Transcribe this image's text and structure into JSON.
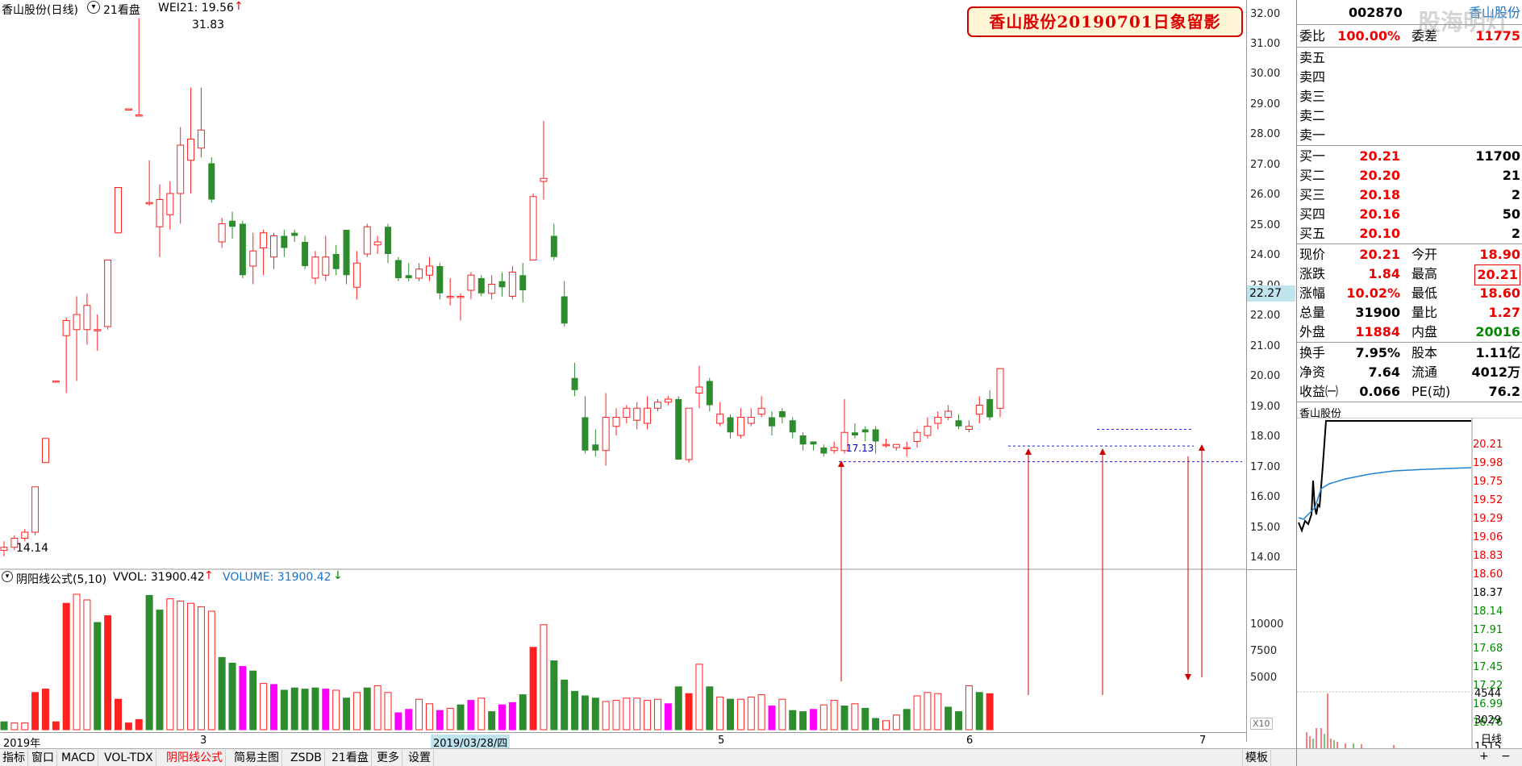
{
  "header": {
    "stock_title": "香山股份(日线)",
    "dropdown_icon": "chevron-down-icon",
    "tab21": "21看盘",
    "wei_label": "WEI21: 19.56",
    "wei_arrow": "↑"
  },
  "banner": {
    "text": "香山股份20190701日象留影"
  },
  "price_axis": {
    "ticks": [
      "32.00",
      "31.00",
      "30.00",
      "29.00",
      "28.00",
      "27.00",
      "26.00",
      "25.00",
      "24.00",
      "23.00",
      "22.00",
      "21.00",
      "20.00",
      "19.00",
      "18.00",
      "17.00",
      "16.00",
      "15.00",
      "14.00"
    ],
    "current": "22.27"
  },
  "chart_annotations": {
    "high": "31.83",
    "low": "14.14",
    "support": "17.13"
  },
  "volume_header": {
    "formula": "阴阳线公式(5,10)",
    "vvol": "VVOL: 31900.42",
    "vvol_arrow": "↑",
    "volume": "VOLUME: 31900.42",
    "volume_arrow": "↓"
  },
  "volume_axis": {
    "ticks": [
      "10000",
      "7500",
      "5000"
    ],
    "multiplier": "X10"
  },
  "date_axis": {
    "labels": [
      "2019年",
      "3",
      "2019/03/28/四",
      "5",
      "6",
      "7"
    ]
  },
  "toolbar": {
    "items": [
      "指标",
      "窗口",
      "MACD",
      "VOL-TDX",
      "阴阳线公式",
      "简易主图",
      "ZSDB",
      "21看盘",
      "更多",
      "设置"
    ],
    "right": "模板",
    "active_index": 4
  },
  "quote_panel": {
    "code": "002870",
    "name": "香山股份",
    "ratio_label": "委比",
    "ratio_value": "100.00%",
    "diff_label": "委差",
    "diff_value": "11775",
    "overlay_text": "股海明灯",
    "sells": [
      {
        "label": "卖五",
        "price": "",
        "vol": ""
      },
      {
        "label": "卖四",
        "price": "",
        "vol": ""
      },
      {
        "label": "卖三",
        "price": "",
        "vol": ""
      },
      {
        "label": "卖二",
        "price": "",
        "vol": ""
      },
      {
        "label": "卖一",
        "price": "",
        "vol": ""
      }
    ],
    "buys": [
      {
        "label": "买一",
        "price": "20.21",
        "vol": "11700"
      },
      {
        "label": "买二",
        "price": "20.20",
        "vol": "21"
      },
      {
        "label": "买三",
        "price": "20.18",
        "vol": "2"
      },
      {
        "label": "买四",
        "price": "20.16",
        "vol": "50"
      },
      {
        "label": "买五",
        "price": "20.10",
        "vol": "2"
      }
    ],
    "stats": [
      {
        "l1": "现价",
        "v1": "20.21",
        "c1": "red",
        "l2": "今开",
        "v2": "18.90",
        "c2": "red"
      },
      {
        "l1": "涨跌",
        "v1": "1.84",
        "c1": "red",
        "l2": "最高",
        "v2": "20.21",
        "c2": "red"
      },
      {
        "l1": "涨幅",
        "v1": "10.02%",
        "c1": "red",
        "l2": "最低",
        "v2": "18.60",
        "c2": "red"
      },
      {
        "l1": "总量",
        "v1": "31900",
        "c1": "blk",
        "l2": "量比",
        "v2": "1.27",
        "c2": "red"
      },
      {
        "l1": "外盘",
        "v1": "11884",
        "c1": "red",
        "l2": "内盘",
        "v2": "20016",
        "c2": "grn"
      }
    ],
    "stats2": [
      {
        "l1": "换手",
        "v1": "7.95%",
        "l2": "股本",
        "v2": "1.11亿"
      },
      {
        "l1": "净资",
        "v1": "7.64",
        "l2": "流通",
        "v2": "4012万"
      },
      {
        "l1": "收益㈠",
        "v1": "0.066",
        "l2": "PE(动)",
        "v2": "76.2"
      }
    ]
  },
  "mini_chart": {
    "title": "香山股份",
    "axis": [
      "20.21",
      "19.98",
      "19.75",
      "19.52",
      "19.29",
      "19.06",
      "18.83",
      "18.60",
      "18.37",
      "18.14",
      "17.91",
      "17.68",
      "17.45",
      "17.22",
      "16.99",
      "16.76"
    ],
    "vol_axis": [
      "4544",
      "3029",
      "1515"
    ],
    "bottom_label": "日线"
  },
  "colors": {
    "up": "#ff2020",
    "down": "#2e8b2e",
    "magenta": "#ff00ff",
    "banner_bg": "#fff6d8"
  },
  "chart_data": {
    "type": "candlestick",
    "candles": [
      {
        "o": 14.2,
        "c": 14.3,
        "h": 14.5,
        "l": 14.0
      },
      {
        "o": 14.3,
        "c": 14.6,
        "h": 14.7,
        "l": 14.2
      },
      {
        "o": 14.6,
        "c": 14.8,
        "h": 14.9,
        "l": 14.5
      },
      {
        "o": 14.8,
        "c": 16.3,
        "h": 16.3,
        "l": 14.7
      },
      {
        "o": 17.1,
        "c": 17.9,
        "h": 17.9,
        "l": 17.1
      },
      {
        "o": 19.8,
        "c": 19.8,
        "h": 19.8,
        "l": 19.8
      },
      {
        "o": 21.3,
        "c": 21.8,
        "h": 21.9,
        "l": 19.4
      },
      {
        "o": 21.5,
        "c": 22.0,
        "h": 22.6,
        "l": 19.8
      },
      {
        "o": 21.5,
        "c": 22.3,
        "h": 22.7,
        "l": 21.0
      },
      {
        "o": 21.5,
        "c": 21.5,
        "h": 22.0,
        "l": 20.8
      },
      {
        "o": 21.6,
        "c": 23.8,
        "h": 23.8,
        "l": 21.5
      },
      {
        "o": 24.7,
        "c": 26.2,
        "h": 26.2,
        "l": 24.7
      },
      {
        "o": 28.8,
        "c": 28.8,
        "h": 28.8,
        "l": 28.8
      },
      {
        "o": 28.6,
        "c": 28.6,
        "h": 31.8,
        "l": 28.6
      },
      {
        "o": 25.7,
        "c": 25.7,
        "h": 27.1,
        "l": 25.6
      },
      {
        "o": 24.9,
        "c": 25.8,
        "h": 26.3,
        "l": 23.9
      },
      {
        "o": 25.3,
        "c": 26.0,
        "h": 26.4,
        "l": 24.8
      },
      {
        "o": 26.0,
        "c": 27.6,
        "h": 28.2,
        "l": 25.0
      },
      {
        "o": 27.1,
        "c": 27.8,
        "h": 29.5,
        "l": 26.0
      },
      {
        "o": 27.5,
        "c": 28.1,
        "h": 29.5,
        "l": 27.2
      },
      {
        "o": 27.0,
        "c": 25.8,
        "h": 27.2,
        "l": 25.7
      },
      {
        "o": 24.4,
        "c": 25.0,
        "h": 25.2,
        "l": 24.2
      },
      {
        "o": 25.1,
        "c": 24.9,
        "h": 25.4,
        "l": 24.5
      },
      {
        "o": 25.0,
        "c": 23.3,
        "h": 25.1,
        "l": 23.2
      },
      {
        "o": 23.6,
        "c": 24.1,
        "h": 24.7,
        "l": 23.0
      },
      {
        "o": 24.2,
        "c": 24.7,
        "h": 24.8,
        "l": 23.3
      },
      {
        "o": 23.9,
        "c": 24.6,
        "h": 24.7,
        "l": 23.5
      },
      {
        "o": 24.6,
        "c": 24.2,
        "h": 24.8,
        "l": 23.9
      },
      {
        "o": 24.7,
        "c": 24.6,
        "h": 24.8,
        "l": 24.4
      },
      {
        "o": 24.4,
        "c": 23.6,
        "h": 24.6,
        "l": 23.5
      },
      {
        "o": 23.2,
        "c": 23.9,
        "h": 24.1,
        "l": 23.0
      },
      {
        "o": 23.3,
        "c": 23.9,
        "h": 24.6,
        "l": 23.1
      },
      {
        "o": 24.0,
        "c": 23.5,
        "h": 24.3,
        "l": 23.3
      },
      {
        "o": 24.8,
        "c": 23.3,
        "h": 24.8,
        "l": 23.0
      },
      {
        "o": 22.9,
        "c": 23.7,
        "h": 24.1,
        "l": 22.5
      },
      {
        "o": 24.0,
        "c": 24.9,
        "h": 25.0,
        "l": 23.9
      },
      {
        "o": 24.3,
        "c": 24.4,
        "h": 24.6,
        "l": 24.0
      },
      {
        "o": 24.9,
        "c": 24.0,
        "h": 25.0,
        "l": 23.7
      },
      {
        "o": 23.8,
        "c": 23.2,
        "h": 23.9,
        "l": 23.1
      },
      {
        "o": 23.3,
        "c": 23.2,
        "h": 23.7,
        "l": 23.1
      },
      {
        "o": 23.2,
        "c": 23.5,
        "h": 23.7,
        "l": 23.1
      },
      {
        "o": 23.3,
        "c": 23.6,
        "h": 23.9,
        "l": 23.1
      },
      {
        "o": 23.6,
        "c": 22.7,
        "h": 23.7,
        "l": 22.5
      },
      {
        "o": 22.6,
        "c": 22.6,
        "h": 23.2,
        "l": 22.3
      },
      {
        "o": 22.6,
        "c": 22.6,
        "h": 22.7,
        "l": 21.8
      },
      {
        "o": 22.8,
        "c": 23.3,
        "h": 23.4,
        "l": 22.5
      },
      {
        "o": 23.2,
        "c": 22.7,
        "h": 23.3,
        "l": 22.6
      },
      {
        "o": 22.7,
        "c": 23.0,
        "h": 23.3,
        "l": 22.5
      },
      {
        "o": 23.1,
        "c": 22.9,
        "h": 23.4,
        "l": 22.6
      },
      {
        "o": 22.6,
        "c": 23.4,
        "h": 23.6,
        "l": 22.5
      },
      {
        "o": 23.3,
        "c": 22.8,
        "h": 23.7,
        "l": 22.4
      },
      {
        "o": 23.8,
        "c": 25.9,
        "h": 26.0,
        "l": 23.8
      },
      {
        "o": 26.4,
        "c": 26.5,
        "h": 28.4,
        "l": 25.8
      },
      {
        "o": 24.6,
        "c": 23.9,
        "h": 25.0,
        "l": 23.8
      },
      {
        "o": 22.6,
        "c": 21.7,
        "h": 23.1,
        "l": 21.6
      },
      {
        "o": 19.9,
        "c": 19.5,
        "h": 20.4,
        "l": 19.3
      },
      {
        "o": 18.6,
        "c": 17.5,
        "h": 19.3,
        "l": 17.4
      },
      {
        "o": 17.7,
        "c": 17.5,
        "h": 18.2,
        "l": 17.3
      },
      {
        "o": 17.5,
        "c": 18.6,
        "h": 19.4,
        "l": 17.0
      },
      {
        "o": 18.3,
        "c": 18.6,
        "h": 18.9,
        "l": 18.0
      },
      {
        "o": 18.6,
        "c": 18.9,
        "h": 19.0,
        "l": 18.4
      },
      {
        "o": 18.5,
        "c": 18.9,
        "h": 19.1,
        "l": 18.2
      },
      {
        "o": 18.4,
        "c": 18.9,
        "h": 19.3,
        "l": 18.2
      },
      {
        "o": 18.9,
        "c": 19.1,
        "h": 19.2,
        "l": 18.8
      },
      {
        "o": 19.1,
        "c": 19.2,
        "h": 19.3,
        "l": 19.0
      },
      {
        "o": 19.2,
        "c": 17.2,
        "h": 19.3,
        "l": 17.2
      },
      {
        "o": 17.2,
        "c": 18.9,
        "h": 18.9,
        "l": 17.1
      },
      {
        "o": 19.4,
        "c": 19.6,
        "h": 20.3,
        "l": 18.9
      },
      {
        "o": 19.8,
        "c": 19.0,
        "h": 19.9,
        "l": 18.8
      },
      {
        "o": 18.4,
        "c": 18.7,
        "h": 19.1,
        "l": 18.3
      },
      {
        "o": 18.6,
        "c": 18.1,
        "h": 18.7,
        "l": 17.9
      },
      {
        "o": 18.0,
        "c": 18.6,
        "h": 18.9,
        "l": 17.9
      },
      {
        "o": 18.4,
        "c": 18.6,
        "h": 18.9,
        "l": 18.3
      },
      {
        "o": 18.7,
        "c": 18.9,
        "h": 19.3,
        "l": 18.6
      },
      {
        "o": 18.6,
        "c": 18.3,
        "h": 18.8,
        "l": 18.0
      },
      {
        "o": 18.8,
        "c": 18.6,
        "h": 18.9,
        "l": 18.4
      },
      {
        "o": 18.5,
        "c": 18.1,
        "h": 18.6,
        "l": 17.9
      },
      {
        "o": 18.0,
        "c": 17.7,
        "h": 18.1,
        "l": 17.5
      },
      {
        "o": 17.8,
        "c": 17.7,
        "h": 17.8,
        "l": 17.5
      },
      {
        "o": 17.6,
        "c": 17.4,
        "h": 17.7,
        "l": 17.3
      },
      {
        "o": 17.5,
        "c": 17.6,
        "h": 17.8,
        "l": 17.4
      },
      {
        "o": 17.5,
        "c": 18.1,
        "h": 19.2,
        "l": 17.4
      },
      {
        "o": 18.1,
        "c": 18.0,
        "h": 18.4,
        "l": 17.9
      },
      {
        "o": 18.2,
        "c": 18.1,
        "h": 18.3,
        "l": 17.8
      },
      {
        "o": 18.2,
        "c": 17.8,
        "h": 18.3,
        "l": 17.4
      },
      {
        "o": 17.7,
        "c": 17.7,
        "h": 17.9,
        "l": 17.6
      },
      {
        "o": 17.6,
        "c": 17.7,
        "h": 17.7,
        "l": 17.5
      },
      {
        "o": 17.6,
        "c": 17.6,
        "h": 17.8,
        "l": 17.3
      },
      {
        "o": 17.8,
        "c": 18.1,
        "h": 18.2,
        "l": 17.6
      },
      {
        "o": 18.0,
        "c": 18.3,
        "h": 18.6,
        "l": 17.9
      },
      {
        "o": 18.4,
        "c": 18.6,
        "h": 18.8,
        "l": 18.2
      },
      {
        "o": 18.6,
        "c": 18.8,
        "h": 19.0,
        "l": 18.5
      },
      {
        "o": 18.5,
        "c": 18.3,
        "h": 18.7,
        "l": 18.2
      },
      {
        "o": 18.2,
        "c": 18.3,
        "h": 18.5,
        "l": 18.1
      },
      {
        "o": 18.7,
        "c": 19.0,
        "h": 19.3,
        "l": 18.4
      },
      {
        "o": 19.2,
        "c": 18.6,
        "h": 19.5,
        "l": 18.5
      },
      {
        "o": 18.9,
        "c": 20.21,
        "h": 20.21,
        "l": 18.6
      }
    ],
    "volumes": [
      {
        "v": 700,
        "k": "d"
      },
      {
        "v": 600,
        "k": "u"
      },
      {
        "v": 600,
        "k": "u"
      },
      {
        "v": 3300,
        "k": "f"
      },
      {
        "v": 3600,
        "k": "f"
      },
      {
        "v": 700,
        "k": "f"
      },
      {
        "v": 11200,
        "k": "f"
      },
      {
        "v": 12000,
        "k": "u"
      },
      {
        "v": 11500,
        "k": "u"
      },
      {
        "v": 9500,
        "k": "d"
      },
      {
        "v": 10100,
        "k": "f"
      },
      {
        "v": 2700,
        "k": "f"
      },
      {
        "v": 600,
        "k": "f"
      },
      {
        "v": 900,
        "k": "f"
      },
      {
        "v": 11900,
        "k": "d"
      },
      {
        "v": 10600,
        "k": "d"
      },
      {
        "v": 11600,
        "k": "u"
      },
      {
        "v": 11400,
        "k": "u"
      },
      {
        "v": 11200,
        "k": "u"
      },
      {
        "v": 10900,
        "k": "u"
      },
      {
        "v": 10500,
        "k": "u"
      },
      {
        "v": 6400,
        "k": "d"
      },
      {
        "v": 5900,
        "k": "d"
      },
      {
        "v": 5600,
        "k": "m"
      },
      {
        "v": 5200,
        "k": "d"
      },
      {
        "v": 4100,
        "k": "u"
      },
      {
        "v": 4000,
        "k": "m"
      },
      {
        "v": 3500,
        "k": "d"
      },
      {
        "v": 3700,
        "k": "d"
      },
      {
        "v": 3600,
        "k": "d"
      },
      {
        "v": 3700,
        "k": "d"
      },
      {
        "v": 3600,
        "k": "m"
      },
      {
        "v": 3500,
        "k": "u"
      },
      {
        "v": 2800,
        "k": "d"
      },
      {
        "v": 3300,
        "k": "u"
      },
      {
        "v": 3700,
        "k": "d"
      },
      {
        "v": 3900,
        "k": "u"
      },
      {
        "v": 3300,
        "k": "u"
      },
      {
        "v": 1500,
        "k": "m"
      },
      {
        "v": 1800,
        "k": "m"
      },
      {
        "v": 2700,
        "k": "u"
      },
      {
        "v": 2300,
        "k": "u"
      },
      {
        "v": 1700,
        "k": "m"
      },
      {
        "v": 1900,
        "k": "u"
      },
      {
        "v": 2200,
        "k": "d"
      },
      {
        "v": 2600,
        "k": "m"
      },
      {
        "v": 2800,
        "k": "u"
      },
      {
        "v": 1600,
        "k": "d"
      },
      {
        "v": 2200,
        "k": "m"
      },
      {
        "v": 2400,
        "k": "m"
      },
      {
        "v": 3100,
        "k": "d"
      },
      {
        "v": 7300,
        "k": "f"
      },
      {
        "v": 9300,
        "k": "u"
      },
      {
        "v": 6100,
        "k": "d"
      },
      {
        "v": 4400,
        "k": "d"
      },
      {
        "v": 3400,
        "k": "d"
      },
      {
        "v": 3000,
        "k": "d"
      },
      {
        "v": 2800,
        "k": "d"
      },
      {
        "v": 2500,
        "k": "u"
      },
      {
        "v": 2600,
        "k": "u"
      },
      {
        "v": 2800,
        "k": "u"
      },
      {
        "v": 2800,
        "k": "u"
      },
      {
        "v": 2600,
        "k": "u"
      },
      {
        "v": 2700,
        "k": "u"
      },
      {
        "v": 2300,
        "k": "m"
      },
      {
        "v": 3800,
        "k": "d"
      },
      {
        "v": 3200,
        "k": "f"
      },
      {
        "v": 5800,
        "k": "u"
      },
      {
        "v": 3800,
        "k": "d"
      },
      {
        "v": 2900,
        "k": "u"
      },
      {
        "v": 2700,
        "k": "d"
      },
      {
        "v": 2700,
        "k": "u"
      },
      {
        "v": 2900,
        "k": "u"
      },
      {
        "v": 3100,
        "k": "u"
      },
      {
        "v": 2100,
        "k": "m"
      },
      {
        "v": 2700,
        "k": "u"
      },
      {
        "v": 1700,
        "k": "d"
      },
      {
        "v": 1600,
        "k": "d"
      },
      {
        "v": 1800,
        "k": "m"
      },
      {
        "v": 2200,
        "k": "u"
      },
      {
        "v": 2600,
        "k": "u"
      },
      {
        "v": 2100,
        "k": "d"
      },
      {
        "v": 2300,
        "k": "u"
      },
      {
        "v": 1900,
        "k": "d"
      },
      {
        "v": 1000,
        "k": "d"
      },
      {
        "v": 800,
        "k": "u"
      },
      {
        "v": 1300,
        "k": "u"
      },
      {
        "v": 1800,
        "k": "d"
      },
      {
        "v": 3000,
        "k": "u"
      },
      {
        "v": 3300,
        "k": "u"
      },
      {
        "v": 3200,
        "k": "u"
      },
      {
        "v": 2000,
        "k": "d"
      },
      {
        "v": 1600,
        "k": "d"
      },
      {
        "v": 3900,
        "k": "u"
      },
      {
        "v": 3300,
        "k": "d"
      },
      {
        "v": 3190,
        "k": "f"
      }
    ],
    "yrange": [
      14.0,
      32.0
    ],
    "volume_max": 12500
  }
}
